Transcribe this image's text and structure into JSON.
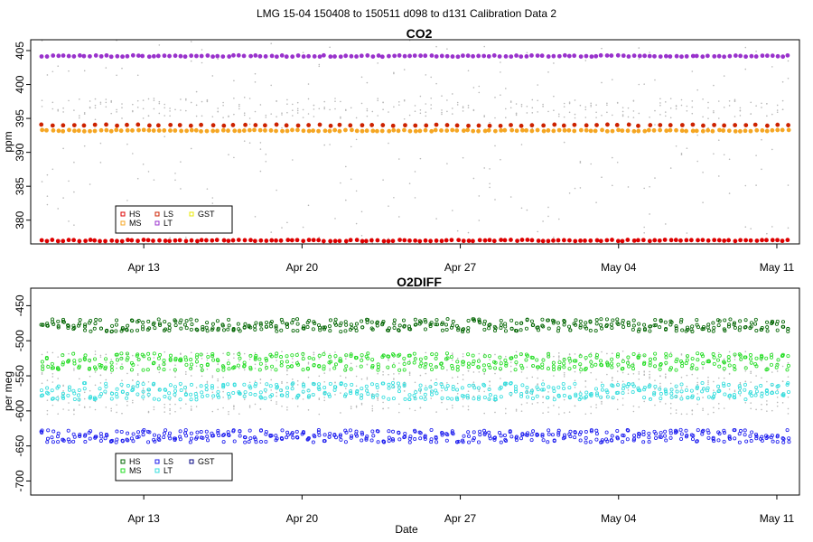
{
  "figure_title": "LMG   15-04    150408 to 150511    d098 to d131   Calibration Data 2",
  "xlabel": "Date",
  "chart_data": [
    {
      "type": "scatter",
      "title": "CO2",
      "ylabel": "ppm",
      "xlim": [
        "2015-04-08",
        "2015-05-12"
      ],
      "x_ticks": [
        "Apr 13",
        "Apr 20",
        "Apr 27",
        "May 04",
        "May 11"
      ],
      "x_tick_dates": [
        "2015-04-13",
        "2015-04-20",
        "2015-04-27",
        "2015-05-04",
        "2015-05-11"
      ],
      "ylim": [
        376.5,
        406.6
      ],
      "y_ticks": [
        380,
        385,
        390,
        395,
        400,
        405
      ],
      "series": [
        {
          "name": "HS",
          "color": "#dd0000",
          "level": 377.0,
          "spread": 0.1
        },
        {
          "name": "MS",
          "color": "#f5a623",
          "level": 393.2,
          "spread": 0.1
        },
        {
          "name": "LS",
          "color": "#cc2200",
          "level": 394.0,
          "spread": 0.1
        },
        {
          "name": "LT",
          "color": "#9932cc",
          "level": 404.2,
          "spread": 0.1
        },
        {
          "name": "GST",
          "color": "#e8e800",
          "level": 393.2,
          "spread": 0.05
        }
      ],
      "background_color": "#b8b8b8",
      "legend": {
        "position": "bottom-left",
        "columns": 3,
        "entries": [
          "HS",
          "MS",
          "LS",
          "LT",
          "GST"
        ]
      }
    },
    {
      "type": "scatter",
      "title": "O2DIFF",
      "ylabel": "per meg",
      "xlim": [
        "2015-04-08",
        "2015-05-12"
      ],
      "x_ticks": [
        "Apr 13",
        "Apr 20",
        "Apr 27",
        "May 04",
        "May 11"
      ],
      "x_tick_dates": [
        "2015-04-13",
        "2015-04-20",
        "2015-04-27",
        "2015-05-04",
        "2015-05-11"
      ],
      "ylim": [
        -720,
        -425
      ],
      "y_ticks": [
        -700,
        -650,
        -600,
        -550,
        -500,
        -450
      ],
      "series": [
        {
          "name": "HS",
          "color": "#006400",
          "level": -478,
          "spread": 6
        },
        {
          "name": "MS",
          "color": "#22dd22",
          "level": -530,
          "spread": 8
        },
        {
          "name": "LS",
          "color": "#1a1aee",
          "level": -636,
          "spread": 6
        },
        {
          "name": "LT",
          "color": "#33dddd",
          "level": -572,
          "spread": 8
        },
        {
          "name": "GST",
          "color": "#000080",
          "level": -600,
          "spread": 4
        }
      ],
      "background_color": "#b8b8b8",
      "legend": {
        "position": "bottom-left",
        "columns": 3,
        "entries": [
          "HS",
          "MS",
          "LS",
          "LT",
          "GST"
        ]
      }
    }
  ]
}
